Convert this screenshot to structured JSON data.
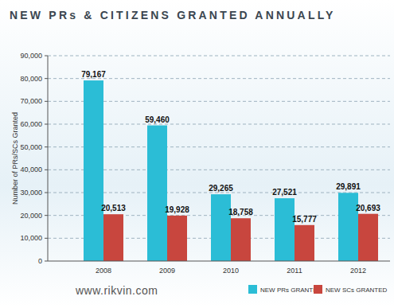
{
  "chart_data": {
    "type": "bar",
    "title": "NEW PRs & CITIZENS GRANTED ANNUALLY",
    "y_label": "Number of PRs/SCs Granted",
    "annotations": [
      "www.rikvin.com"
    ],
    "categories": [
      "2008",
      "2009",
      "2010",
      "2011",
      "2012"
    ],
    "series": [
      {
        "name": "NEW PRs GRANTED",
        "color": "#2bbdd6",
        "values": [
          79167,
          59460,
          29265,
          27521,
          29891
        ],
        "value_labels": [
          "79,167",
          "59,460",
          "29,265",
          "27,521",
          "29,891"
        ]
      },
      {
        "name": "NEW SCs GRANTED",
        "color": "#c8463e",
        "values": [
          20513,
          19928,
          18758,
          15777,
          20693
        ],
        "value_labels": [
          "20,513",
          "19,928",
          "18,758",
          "15,777",
          "20,693"
        ]
      }
    ],
    "ylim": [
      0,
      90000
    ],
    "yticks": [
      0,
      {
        "value": 10000,
        "label": "10,000"
      },
      {
        "value": 20000,
        "label": "20,000"
      },
      {
        "value": 30000,
        "label": "30,000"
      },
      {
        "value": 40000,
        "label": "40,000"
      },
      {
        "value": 50000,
        "label": "50,000"
      },
      {
        "value": 60000,
        "label": "60,000"
      },
      {
        "value": 70000,
        "label": "70,000"
      },
      {
        "value": 80000,
        "label": "80,000"
      },
      {
        "value": 90000,
        "label": "90,000"
      }
    ],
    "grid": true,
    "legend": "bottom",
    "data_labels": true
  }
}
